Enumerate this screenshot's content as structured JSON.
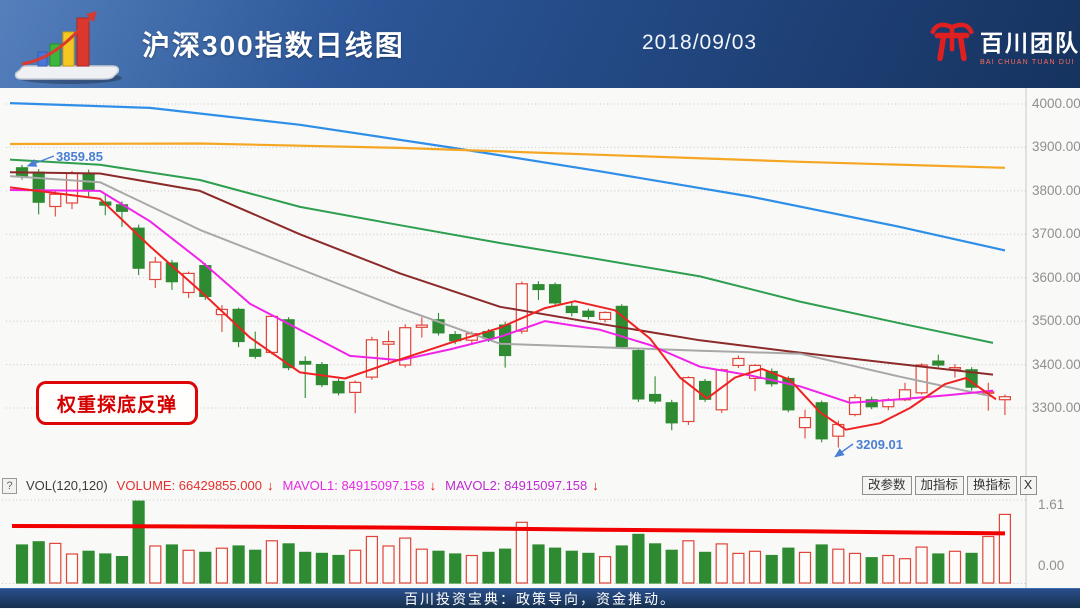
{
  "header": {
    "title": "沪深300指数日线图",
    "date": "2018/09/03",
    "brand_name": "百川团队",
    "brand_subtitle": "BAI CHUAN TUAN DUI"
  },
  "footer": {
    "text": "百川投资宝典：政策导向，资金推动。"
  },
  "callout": {
    "text": "权重探底反弹"
  },
  "labels": {
    "high": "3859.85",
    "low": "3209.01"
  },
  "indicator_bar": {
    "help": "?",
    "name": "VOL(120,120)",
    "volume_text": "VOLUME: 66429855.000",
    "mavol1_text": "MAVOL1: 84915097.158",
    "mavol2_text": "MAVOL2: 84915097.158",
    "arrow": "↓",
    "buttons": [
      "改参数",
      "加指标",
      "换指标"
    ],
    "close": "X"
  },
  "colors": {
    "up": "#e0453a",
    "down": "#2e8b32",
    "grid": "#c6c6c6",
    "axis_text": "#8f8f8f",
    "mavol": "#f20000",
    "annotation_blue": "#4a7fd4",
    "callout_red": "#dd0505"
  },
  "chart_data": {
    "type": "candlestick+volume",
    "title": "沪深300指数日线图",
    "date": "2018/09/03",
    "price_axis": {
      "ticks": [
        4000,
        3900,
        3800,
        3700,
        3600,
        3500,
        3400,
        3300
      ],
      "labels": [
        "4000.00",
        "3900.00",
        "3800.00",
        "3700.00",
        "3600.00",
        "3500.00",
        "3400.00",
        "3300.00"
      ]
    },
    "volume_axis": {
      "max_value": 1.61,
      "max_label": "1.61",
      "min_label": "0.00"
    },
    "high_annotation": {
      "text": "3859.85",
      "value": 3859.85,
      "candle_index": 0
    },
    "low_annotation": {
      "text": "3209.01",
      "value": 3209.01,
      "candle_index": 49
    },
    "indicator": {
      "window": "VOL(120,120)",
      "volume": 66429855.0,
      "mavol1": 84915097.158,
      "mavol2": 84915097.158
    },
    "candles": [
      [
        3853,
        3859.85,
        3826,
        3833
      ],
      [
        3843,
        3850,
        3746,
        3774
      ],
      [
        3764,
        3800,
        3741,
        3792
      ],
      [
        3772,
        3846,
        3758,
        3840
      ],
      [
        3838,
        3849,
        3786,
        3802
      ],
      [
        3774,
        3793,
        3744,
        3767
      ],
      [
        3768,
        3776,
        3717,
        3753
      ],
      [
        3714,
        3722,
        3606,
        3622
      ],
      [
        3596,
        3648,
        3576,
        3636
      ],
      [
        3634,
        3641,
        3572,
        3591
      ],
      [
        3566,
        3614,
        3553,
        3610
      ],
      [
        3628,
        3634,
        3549,
        3557
      ],
      [
        3515,
        3537,
        3475,
        3527
      ],
      [
        3527,
        3531,
        3440,
        3453
      ],
      [
        3435,
        3476,
        3413,
        3419
      ],
      [
        3428,
        3516,
        3423,
        3511
      ],
      [
        3503,
        3509,
        3387,
        3393
      ],
      [
        3407,
        3419,
        3323,
        3401
      ],
      [
        3400,
        3406,
        3348,
        3354
      ],
      [
        3361,
        3367,
        3329,
        3335
      ],
      [
        3336,
        3363,
        3288,
        3359
      ],
      [
        3371,
        3464,
        3365,
        3457
      ],
      [
        3447,
        3478,
        3401,
        3453
      ],
      [
        3399,
        3493,
        3393,
        3485
      ],
      [
        3486,
        3509,
        3462,
        3491
      ],
      [
        3503,
        3519,
        3467,
        3473
      ],
      [
        3469,
        3477,
        3447,
        3455
      ],
      [
        3456,
        3476,
        3445,
        3471
      ],
      [
        3476,
        3482,
        3452,
        3460
      ],
      [
        3491,
        3499,
        3393,
        3421
      ],
      [
        3477,
        3591,
        3471,
        3586
      ],
      [
        3584,
        3592,
        3549,
        3573
      ],
      [
        3584,
        3589,
        3534,
        3542
      ],
      [
        3534,
        3546,
        3511,
        3520
      ],
      [
        3523,
        3529,
        3504,
        3511
      ],
      [
        3504,
        3523,
        3497,
        3520
      ],
      [
        3534,
        3539,
        3437,
        3442
      ],
      [
        3432,
        3437,
        3314,
        3321
      ],
      [
        3331,
        3373,
        3310,
        3316
      ],
      [
        3312,
        3319,
        3249,
        3266
      ],
      [
        3269,
        3373,
        3261,
        3370
      ],
      [
        3361,
        3367,
        3314,
        3320
      ],
      [
        3296,
        3391,
        3289,
        3388
      ],
      [
        3398,
        3421,
        3392,
        3414
      ],
      [
        3368,
        3401,
        3339,
        3398
      ],
      [
        3384,
        3391,
        3349,
        3356
      ],
      [
        3368,
        3373,
        3290,
        3296
      ],
      [
        3255,
        3296,
        3230,
        3278
      ],
      [
        3312,
        3317,
        3221,
        3229
      ],
      [
        3235,
        3271,
        3209.01,
        3262
      ],
      [
        3285,
        3331,
        3281,
        3324
      ],
      [
        3319,
        3326,
        3297,
        3303
      ],
      [
        3303,
        3323,
        3295,
        3319
      ],
      [
        3319,
        3358,
        3316,
        3342
      ],
      [
        3335,
        3403,
        3331,
        3399
      ],
      [
        3408,
        3423,
        3394,
        3399
      ],
      [
        3389,
        3401,
        3370,
        3393
      ],
      [
        3388,
        3394,
        3340,
        3348
      ],
      [
        3335,
        3358,
        3294,
        3337
      ],
      [
        3319,
        3331,
        3284,
        3326
      ]
    ],
    "volumes": [
      0.72,
      0.78,
      0.75,
      0.55,
      0.6,
      0.55,
      0.5,
      1.55,
      0.7,
      0.72,
      0.62,
      0.58,
      0.66,
      0.7,
      0.62,
      0.8,
      0.74,
      0.58,
      0.56,
      0.52,
      0.62,
      0.88,
      0.7,
      0.85,
      0.64,
      0.6,
      0.55,
      0.52,
      0.58,
      0.64,
      1.15,
      0.72,
      0.66,
      0.6,
      0.56,
      0.5,
      0.7,
      0.92,
      0.74,
      0.62,
      0.8,
      0.58,
      0.74,
      0.56,
      0.6,
      0.52,
      0.66,
      0.58,
      0.72,
      0.64,
      0.56,
      0.48,
      0.52,
      0.46,
      0.68,
      0.55,
      0.6,
      0.56,
      0.88,
      1.3
    ],
    "ma_series": [
      {
        "name": "ma-blue",
        "color": "#2f8fe8",
        "width": 2.2,
        "points": [
          [
            10,
            4002
          ],
          [
            150,
            3991
          ],
          [
            300,
            3952
          ],
          [
            450,
            3900
          ],
          [
            600,
            3845
          ],
          [
            750,
            3787
          ],
          [
            900,
            3717
          ],
          [
            1005,
            3663
          ]
        ]
      },
      {
        "name": "ma-orange",
        "color": "#f5a623",
        "width": 2.2,
        "points": [
          [
            10,
            3908
          ],
          [
            200,
            3909
          ],
          [
            400,
            3899
          ],
          [
            600,
            3883
          ],
          [
            800,
            3867
          ],
          [
            1005,
            3853
          ]
        ]
      },
      {
        "name": "ma-green",
        "color": "#2e9e4f",
        "width": 2,
        "points": [
          [
            10,
            3872
          ],
          [
            100,
            3860
          ],
          [
            200,
            3825
          ],
          [
            300,
            3763
          ],
          [
            400,
            3721
          ],
          [
            500,
            3680
          ],
          [
            600,
            3642
          ],
          [
            700,
            3603
          ],
          [
            800,
            3545
          ],
          [
            900,
            3495
          ],
          [
            993,
            3450
          ]
        ]
      },
      {
        "name": "ma-maroon",
        "color": "#8c2a2a",
        "width": 2,
        "points": [
          [
            10,
            3843
          ],
          [
            100,
            3840
          ],
          [
            200,
            3800
          ],
          [
            300,
            3700
          ],
          [
            400,
            3610
          ],
          [
            500,
            3533
          ],
          [
            600,
            3494
          ],
          [
            700,
            3456
          ],
          [
            790,
            3430
          ],
          [
            900,
            3401
          ],
          [
            993,
            3377
          ]
        ]
      },
      {
        "name": "ma-gray",
        "color": "#a8a8a8",
        "width": 2,
        "points": [
          [
            10,
            3834
          ],
          [
            100,
            3820
          ],
          [
            200,
            3710
          ],
          [
            300,
            3620
          ],
          [
            400,
            3530
          ],
          [
            500,
            3448
          ],
          [
            600,
            3440
          ],
          [
            700,
            3432
          ],
          [
            800,
            3425
          ],
          [
            900,
            3372
          ],
          [
            993,
            3326
          ]
        ]
      },
      {
        "name": "ma-magenta",
        "color": "#f024e8",
        "width": 2,
        "points": [
          [
            10,
            3802
          ],
          [
            100,
            3800
          ],
          [
            150,
            3730
          ],
          [
            200,
            3640
          ],
          [
            250,
            3540
          ],
          [
            300,
            3480
          ],
          [
            350,
            3420
          ],
          [
            400,
            3410
          ],
          [
            450,
            3435
          ],
          [
            500,
            3464
          ],
          [
            545,
            3500
          ],
          [
            600,
            3480
          ],
          [
            650,
            3445
          ],
          [
            700,
            3395
          ],
          [
            750,
            3375
          ],
          [
            800,
            3350
          ],
          [
            850,
            3312
          ],
          [
            900,
            3320
          ],
          [
            950,
            3330
          ],
          [
            993,
            3340
          ]
        ]
      },
      {
        "name": "ma-red",
        "color": "#ee2222",
        "width": 2,
        "points": [
          [
            10,
            3808
          ],
          [
            100,
            3782
          ],
          [
            150,
            3672
          ],
          [
            200,
            3570
          ],
          [
            250,
            3462
          ],
          [
            300,
            3382
          ],
          [
            345,
            3368
          ],
          [
            400,
            3412
          ],
          [
            450,
            3450
          ],
          [
            500,
            3485
          ],
          [
            545,
            3530
          ],
          [
            575,
            3546
          ],
          [
            615,
            3525
          ],
          [
            650,
            3460
          ],
          [
            680,
            3370
          ],
          [
            707,
            3322
          ],
          [
            735,
            3370
          ],
          [
            762,
            3390
          ],
          [
            790,
            3365
          ],
          [
            820,
            3290
          ],
          [
            846,
            3250
          ],
          [
            880,
            3265
          ],
          [
            910,
            3300
          ],
          [
            945,
            3355
          ],
          [
            966,
            3369
          ],
          [
            996,
            3320
          ]
        ]
      }
    ],
    "mavol_line": {
      "color": "#f20000",
      "width": 4,
      "points": [
        [
          12,
          1.08
        ],
        [
          200,
          1.07
        ],
        [
          400,
          1.05
        ],
        [
          600,
          1.01
        ],
        [
          800,
          0.98
        ],
        [
          1005,
          0.94
        ]
      ]
    }
  }
}
